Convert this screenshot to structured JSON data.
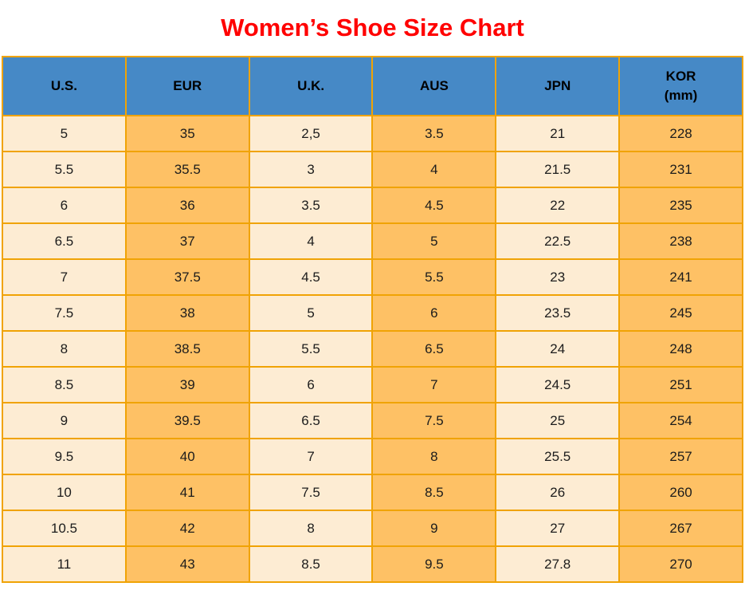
{
  "page": {
    "title": "Women’s Shoe Size Chart"
  },
  "colors": {
    "title_red": "#ff0000",
    "header_blue": "#4689c6",
    "cell_cream": "#fdecd3",
    "cell_orange": "#fec165",
    "grid_orange": "#f0a305",
    "cell_text": "#1c1c1c"
  },
  "chart_data": {
    "type": "table",
    "title": "Women’s Shoe Size Chart",
    "columns": [
      {
        "label": "U.S."
      },
      {
        "label": "EUR"
      },
      {
        "label": "U.K."
      },
      {
        "label": "AUS"
      },
      {
        "label": "JPN"
      },
      {
        "label": "KOR",
        "sub": "(mm)"
      }
    ],
    "rows": [
      [
        "5",
        "35",
        "2,5",
        "3.5",
        "21",
        "228"
      ],
      [
        "5.5",
        "35.5",
        "3",
        "4",
        "21.5",
        "231"
      ],
      [
        "6",
        "36",
        "3.5",
        "4.5",
        "22",
        "235"
      ],
      [
        "6.5",
        "37",
        "4",
        "5",
        "22.5",
        "238"
      ],
      [
        "7",
        "37.5",
        "4.5",
        "5.5",
        "23",
        "241"
      ],
      [
        "7.5",
        "38",
        "5",
        "6",
        "23.5",
        "245"
      ],
      [
        "8",
        "38.5",
        "5.5",
        "6.5",
        "24",
        "248"
      ],
      [
        "8.5",
        "39",
        "6",
        "7",
        "24.5",
        "251"
      ],
      [
        "9",
        "39.5",
        "6.5",
        "7.5",
        "25",
        "254"
      ],
      [
        "9.5",
        "40",
        "7",
        "8",
        "25.5",
        "257"
      ],
      [
        "10",
        "41",
        "7.5",
        "8.5",
        "26",
        "260"
      ],
      [
        "10.5",
        "42",
        "8",
        "9",
        "27",
        "267"
      ],
      [
        "11",
        "43",
        "8.5",
        "9.5",
        "27.8",
        "270"
      ]
    ]
  }
}
